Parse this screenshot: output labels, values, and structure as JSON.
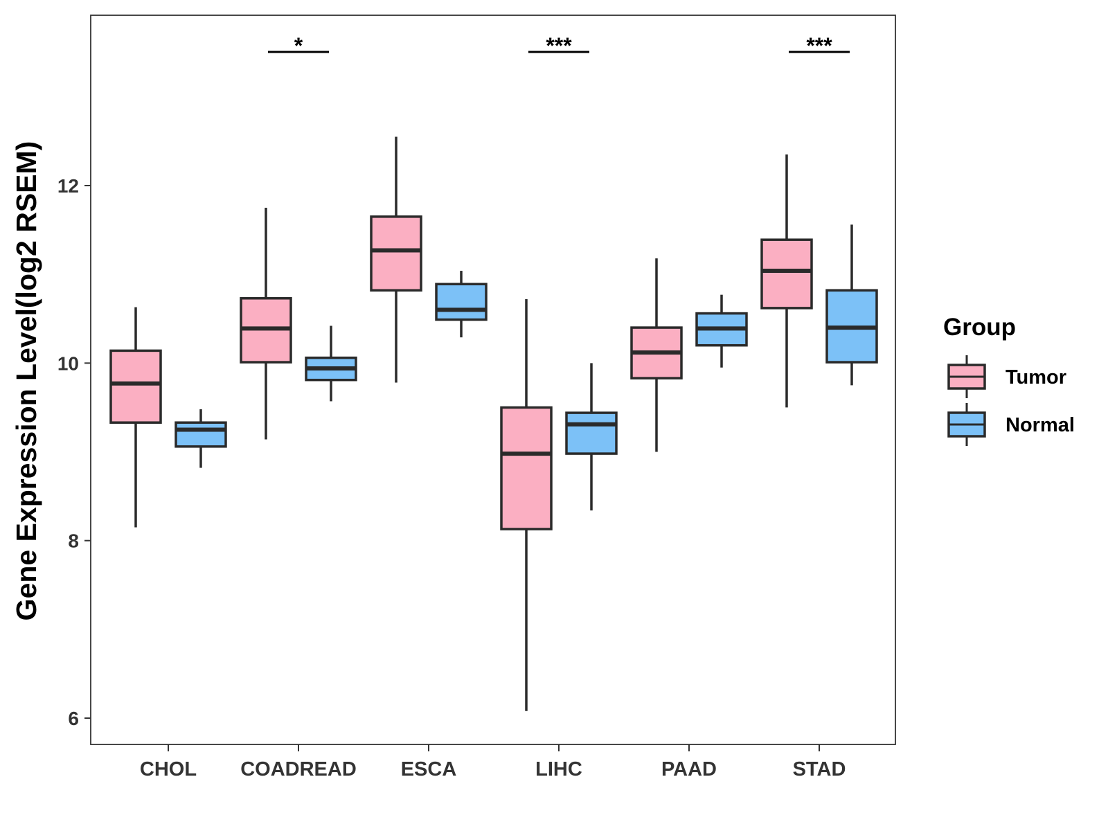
{
  "chart_data": {
    "type": "boxplot",
    "title": "",
    "xlabel": "",
    "ylabel": "Gene Expression Level(log2 RSEM)",
    "ylim": [
      5.8,
      14.0
    ],
    "yticks": [
      6,
      8,
      10,
      12
    ],
    "ytick_labels": [
      "6",
      "8",
      "10",
      "12"
    ],
    "grid": false,
    "legend_position": "right",
    "legend": {
      "title": "Group",
      "entries": [
        {
          "name": "Tumor",
          "color": "#FBAFC2"
        },
        {
          "name": "Normal",
          "color": "#7CC1F7"
        }
      ]
    },
    "categories": [
      "CHOL",
      "COADREAD",
      "ESCA",
      "LIHC",
      "PAAD",
      "STAD"
    ],
    "series": [
      {
        "name": "Tumor",
        "color": "#FBAFC2",
        "boxes": [
          {
            "min": 8.15,
            "q1": 9.33,
            "median": 9.77,
            "q3": 10.14,
            "max": 10.63
          },
          {
            "min": 9.14,
            "q1": 10.01,
            "median": 10.39,
            "q3": 10.73,
            "max": 11.75
          },
          {
            "min": 9.78,
            "q1": 10.82,
            "median": 11.27,
            "q3": 11.65,
            "max": 12.55
          },
          {
            "min": 6.08,
            "q1": 8.13,
            "median": 8.98,
            "q3": 9.5,
            "max": 10.72
          },
          {
            "min": 9.0,
            "q1": 9.83,
            "median": 10.12,
            "q3": 10.4,
            "max": 11.18
          },
          {
            "min": 9.5,
            "q1": 10.62,
            "median": 11.04,
            "q3": 11.39,
            "max": 12.35
          }
        ]
      },
      {
        "name": "Normal",
        "color": "#7CC1F7",
        "boxes": [
          {
            "min": 8.82,
            "q1": 9.06,
            "median": 9.25,
            "q3": 9.33,
            "max": 9.48
          },
          {
            "min": 9.57,
            "q1": 9.81,
            "median": 9.94,
            "q3": 10.06,
            "max": 10.42
          },
          {
            "min": 10.29,
            "q1": 10.49,
            "median": 10.6,
            "q3": 10.89,
            "max": 11.04
          },
          {
            "min": 8.34,
            "q1": 8.98,
            "median": 9.31,
            "q3": 9.44,
            "max": 10.0
          },
          {
            "min": 9.95,
            "q1": 10.2,
            "median": 10.39,
            "q3": 10.56,
            "max": 10.77
          },
          {
            "min": 9.75,
            "q1": 10.01,
            "median": 10.4,
            "q3": 10.82,
            "max": 11.56
          }
        ]
      }
    ],
    "annotations": [
      {
        "category": "COADREAD",
        "label": "*"
      },
      {
        "category": "LIHC",
        "label": "***"
      },
      {
        "category": "STAD",
        "label": "***"
      }
    ]
  }
}
